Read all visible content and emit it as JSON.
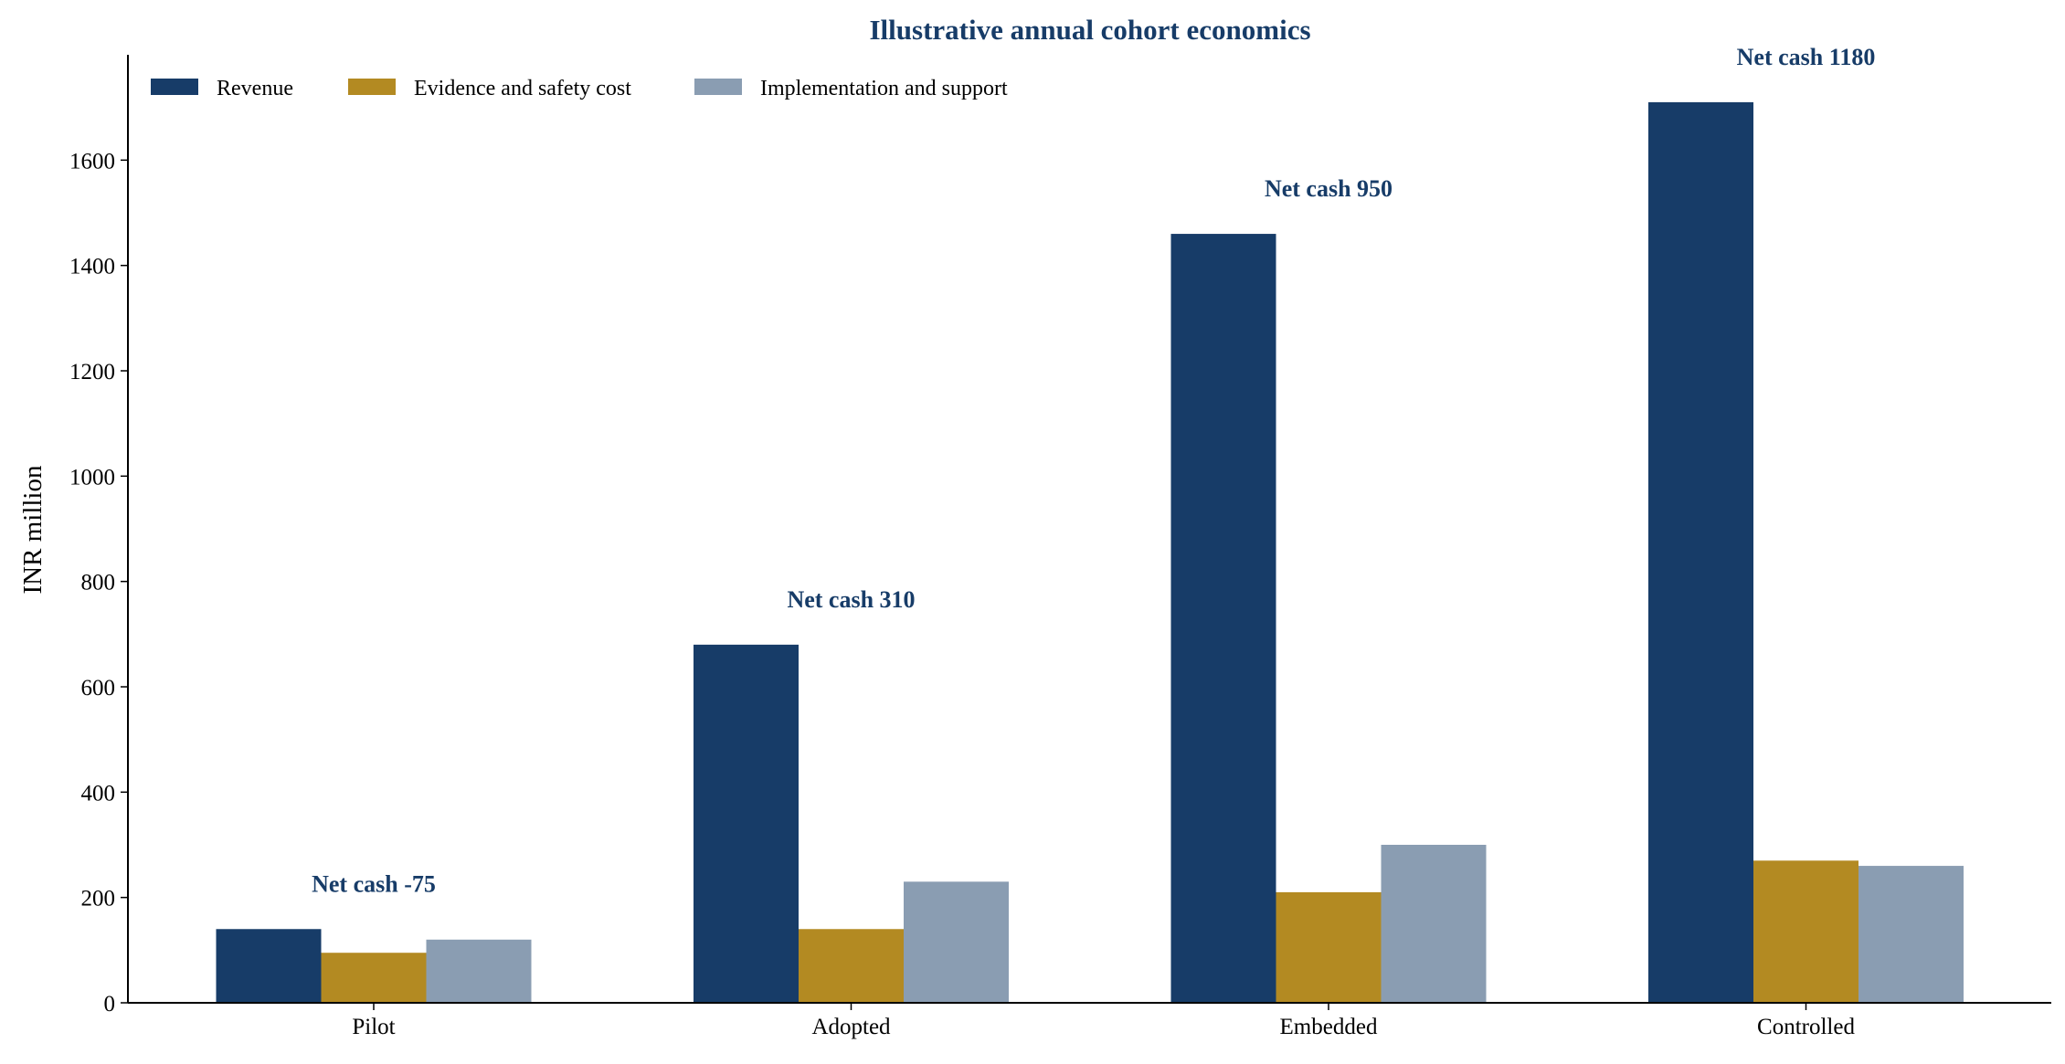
{
  "chart_data": {
    "type": "bar",
    "title": "Illustrative annual cohort economics",
    "xlabel": "",
    "ylabel": "INR million",
    "categories": [
      "Pilot",
      "Adopted",
      "Embedded",
      "Controlled"
    ],
    "series": [
      {
        "name": "Revenue",
        "color": "#173c68",
        "values": [
          140,
          680,
          1460,
          1710
        ]
      },
      {
        "name": "Evidence and safety cost",
        "color": "#b38a22",
        "values": [
          95,
          140,
          210,
          270
        ]
      },
      {
        "name": "Implementation and support",
        "color": "#8a9db2",
        "values": [
          120,
          230,
          300,
          260
        ]
      }
    ],
    "annotations": [
      "Net cash -75",
      "Net cash 310",
      "Net cash 950",
      "Net cash 1180"
    ],
    "ylim": [
      0,
      1800
    ],
    "yticks": [
      0,
      200,
      400,
      600,
      800,
      1000,
      1200,
      1400,
      1600
    ],
    "grid": false,
    "legend_position": "top-left",
    "title_color": "#173c68",
    "annotation_color": "#173c68"
  }
}
